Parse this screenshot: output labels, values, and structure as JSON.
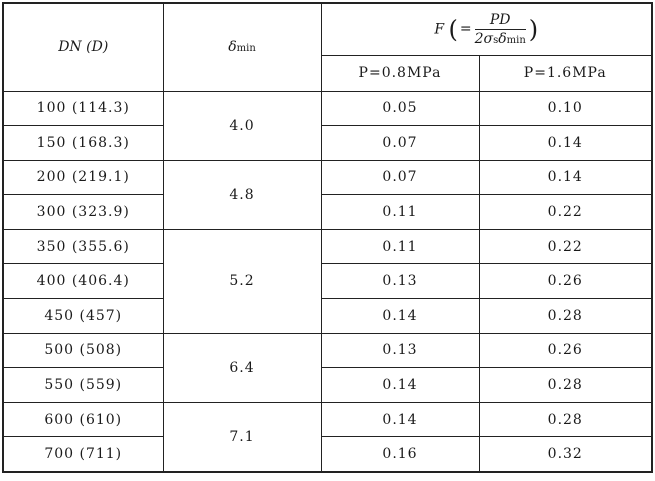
{
  "header": {
    "dn": "DN (D)",
    "delta": "δ",
    "delta_sub": "min",
    "f_label": "F",
    "f_eq": "=",
    "f_num": "PD",
    "f_den_pre": "2σ",
    "f_den_s": "s",
    "f_den_delta": "δ",
    "f_den_min": "min",
    "p1": "P=0.8MPa",
    "p2": "P=1.6MPa"
  },
  "groups": [
    {
      "delta": "4.0",
      "rows": [
        {
          "dn": "100 (114.3)",
          "f1": "0.05",
          "f2": "0.10"
        },
        {
          "dn": "150 (168.3)",
          "f1": "0.07",
          "f2": "0.14"
        }
      ]
    },
    {
      "delta": "4.8",
      "rows": [
        {
          "dn": "200 (219.1)",
          "f1": "0.07",
          "f2": "0.14"
        },
        {
          "dn": "300 (323.9)",
          "f1": "0.11",
          "f2": "0.22"
        }
      ]
    },
    {
      "delta": "5.2",
      "rows": [
        {
          "dn": "350 (355.6)",
          "f1": "0.11",
          "f2": "0.22"
        },
        {
          "dn": "400 (406.4)",
          "f1": "0.13",
          "f2": "0.26"
        },
        {
          "dn": "450 (457)",
          "f1": "0.14",
          "f2": "0.28"
        }
      ]
    },
    {
      "delta": "6.4",
      "rows": [
        {
          "dn": "500 (508)",
          "f1": "0.13",
          "f2": "0.26"
        },
        {
          "dn": "550 (559)",
          "f1": "0.14",
          "f2": "0.28"
        }
      ]
    },
    {
      "delta": "7.1",
      "rows": [
        {
          "dn": "600 (610)",
          "f1": "0.14",
          "f2": "0.28"
        },
        {
          "dn": "700 (711)",
          "f1": "0.16",
          "f2": "0.32"
        }
      ]
    }
  ]
}
